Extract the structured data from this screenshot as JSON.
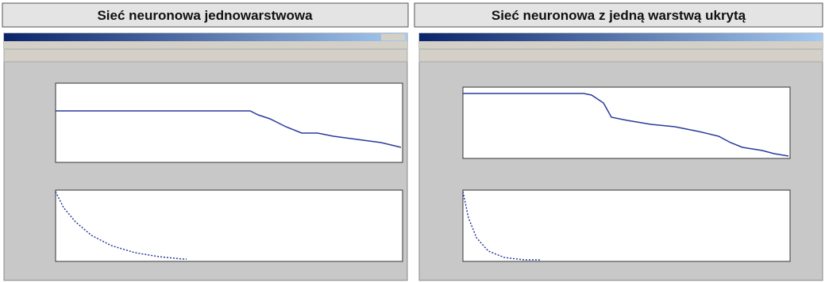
{
  "panels": [
    {
      "title": "Sieć  neuronowa jednowarstwowa"
    },
    {
      "title": "Sieć neuronowa z jedną warstwą ukrytą"
    }
  ]
}
